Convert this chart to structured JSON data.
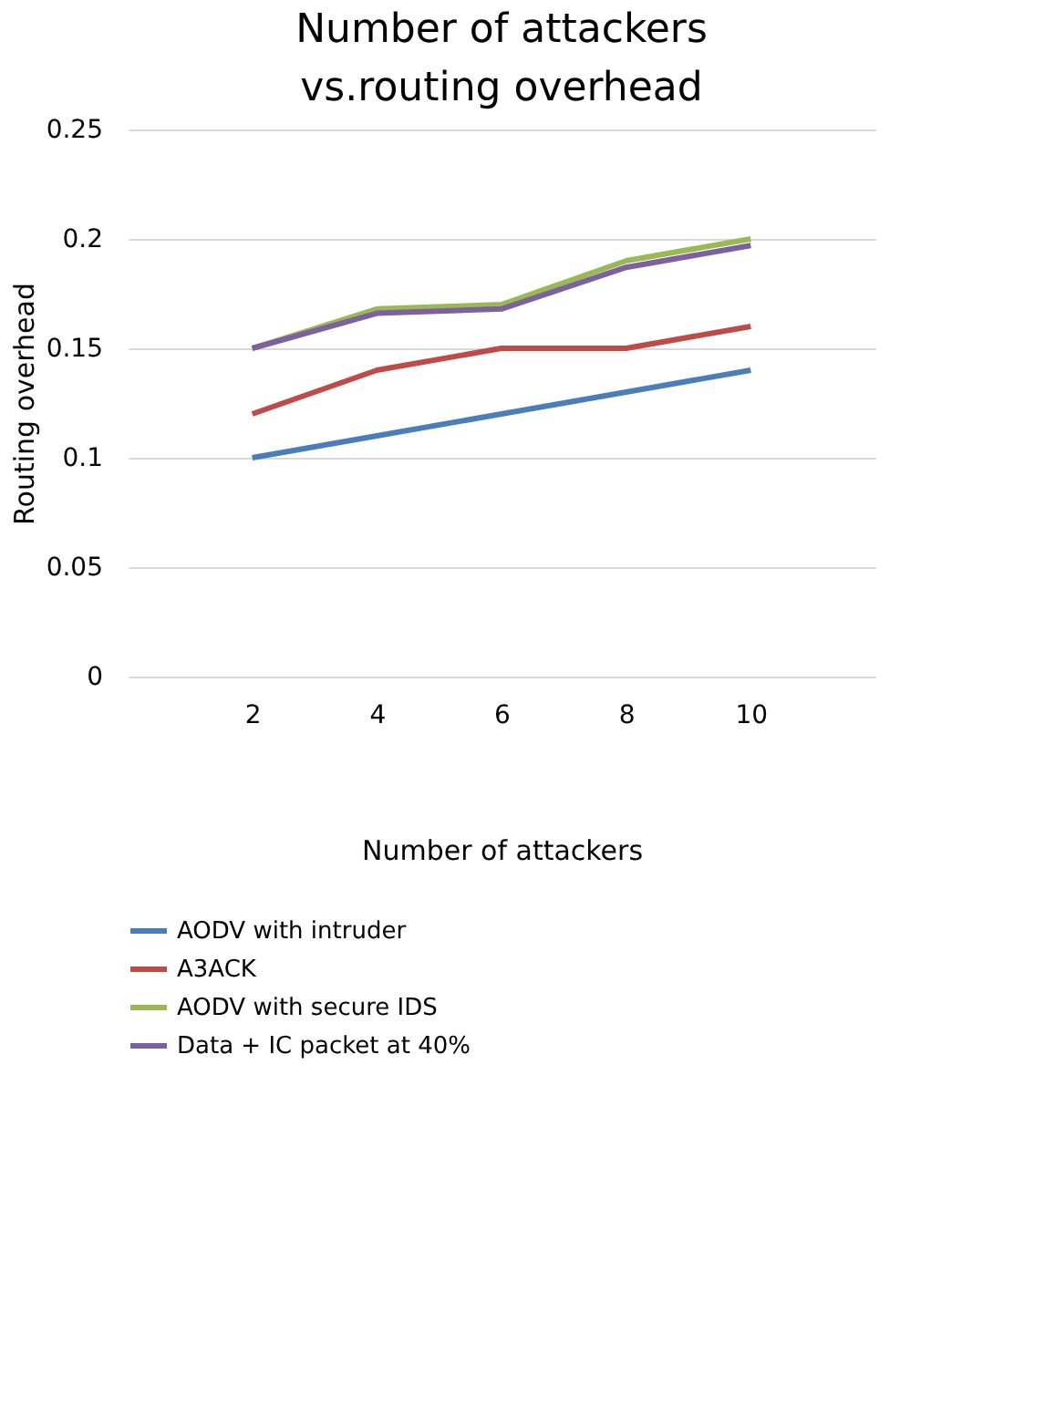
{
  "chart_data": {
    "type": "line",
    "title": "Number of attackers vs.routing overhead",
    "xlabel": "Number of attackers",
    "ylabel": "Routing overhead",
    "categories": [
      "2",
      "4",
      "6",
      "8",
      "10"
    ],
    "series": [
      {
        "name": "AODV with intruder",
        "color": "#4a7ebb",
        "values": [
          0.1,
          0.11,
          0.12,
          0.13,
          0.14
        ]
      },
      {
        "name": "A3ACK",
        "color": "#be4b48",
        "values": [
          0.12,
          0.14,
          0.15,
          0.15,
          0.16
        ]
      },
      {
        "name": "AODV with secure IDS",
        "color": "#98b954",
        "values": [
          0.15,
          0.168,
          0.17,
          0.19,
          0.2
        ]
      },
      {
        "name": "Data + IC packet at 40%",
        "color": "#7d60a0",
        "values": [
          0.15,
          0.166,
          0.168,
          0.187,
          0.197
        ]
      }
    ],
    "ylim": [
      0,
      0.25
    ],
    "yticks": [
      0,
      0.05,
      0.1,
      0.15,
      0.2,
      0.25
    ],
    "grid": "y",
    "legend": "bottom",
    "marker": "none",
    "line_style": "solid"
  }
}
